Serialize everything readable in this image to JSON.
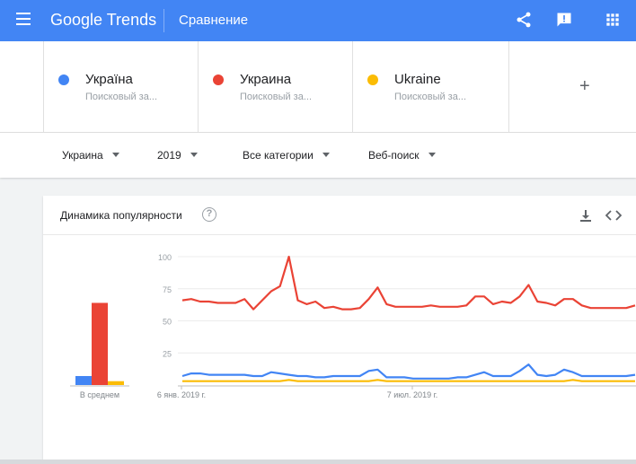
{
  "header": {
    "logo_google": "Google",
    "logo_trends": "Trends",
    "title": "Сравнение",
    "icons": [
      "menu-icon",
      "share-icon",
      "feedback-icon",
      "apps-icon"
    ]
  },
  "terms": [
    {
      "name": "Україна",
      "subtitle": "Поисковый за...",
      "color": "#4285f4"
    },
    {
      "name": "Украина",
      "subtitle": "Поисковый за...",
      "color": "#ea4335"
    },
    {
      "name": "Ukraine",
      "subtitle": "Поисковый за...",
      "color": "#fbbc04"
    }
  ],
  "add_term_label": "+",
  "filters": {
    "region": "Украина",
    "period": "2019",
    "category": "Все категории",
    "search_type": "Веб-поиск"
  },
  "card": {
    "title": "Динамика популярности",
    "help_icon": "?"
  },
  "chart_data": {
    "type": "line",
    "y_ticks": [
      100,
      75,
      50,
      25
    ],
    "ylim": [
      0,
      100
    ],
    "x_labels": [
      "6 янв. 2019 г.",
      "7 июл. 2019 г."
    ],
    "average_label": "В среднем",
    "averages": {
      "Україна": 7,
      "Украина": 64,
      "Ukraine": 3
    },
    "series": [
      {
        "name": "Україна",
        "color": "#4285f4",
        "values": [
          7,
          9,
          9,
          8,
          8,
          8,
          8,
          8,
          7,
          7,
          10,
          9,
          8,
          7,
          7,
          6,
          6,
          7,
          7,
          7,
          7,
          11,
          12,
          6,
          6,
          6,
          5,
          5,
          5,
          5,
          5,
          6,
          6,
          8,
          10,
          7,
          7,
          7,
          11,
          16,
          8,
          7,
          8,
          12,
          10,
          7,
          7,
          7,
          7,
          7,
          7,
          8
        ]
      },
      {
        "name": "Украина",
        "color": "#ea4335",
        "values": [
          66,
          67,
          65,
          65,
          64,
          64,
          64,
          67,
          59,
          66,
          73,
          77,
          100,
          66,
          63,
          65,
          60,
          61,
          59,
          59,
          60,
          67,
          76,
          63,
          61,
          61,
          61,
          61,
          62,
          61,
          61,
          61,
          62,
          69,
          69,
          63,
          65,
          64,
          69,
          78,
          65,
          64,
          62,
          67,
          67,
          62,
          60,
          60,
          60,
          60,
          60,
          62
        ]
      },
      {
        "name": "Ukraine",
        "color": "#fbbc04",
        "values": [
          3,
          3,
          3,
          3,
          3,
          3,
          3,
          3,
          3,
          3,
          3,
          3,
          4,
          3,
          3,
          3,
          3,
          3,
          3,
          3,
          3,
          3,
          4,
          3,
          3,
          3,
          3,
          3,
          3,
          3,
          3,
          3,
          3,
          3,
          3,
          3,
          3,
          3,
          3,
          3,
          3,
          3,
          3,
          3,
          4,
          3,
          3,
          3,
          3,
          3,
          3,
          3
        ]
      }
    ]
  }
}
